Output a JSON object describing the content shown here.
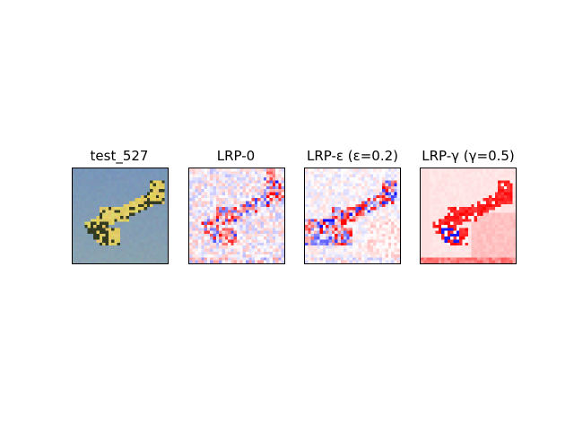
{
  "figure": {
    "panels": [
      {
        "id": "input",
        "title": "test_527"
      },
      {
        "id": "lrp0",
        "title": "LRP-0"
      },
      {
        "id": "lrpeps",
        "title": "LRP-ε (ε=0.2)"
      },
      {
        "id": "lrpgamma",
        "title": "LRP-γ (γ=0.5)"
      }
    ],
    "colormap": "bwr",
    "colors": {
      "positive": "#e00000",
      "negative": "#0000d0",
      "neutral": "#ffffff",
      "sky": "#7f9bb8",
      "plane_body": "#d8c45a",
      "plane_dark": "#2e3a22"
    }
  }
}
